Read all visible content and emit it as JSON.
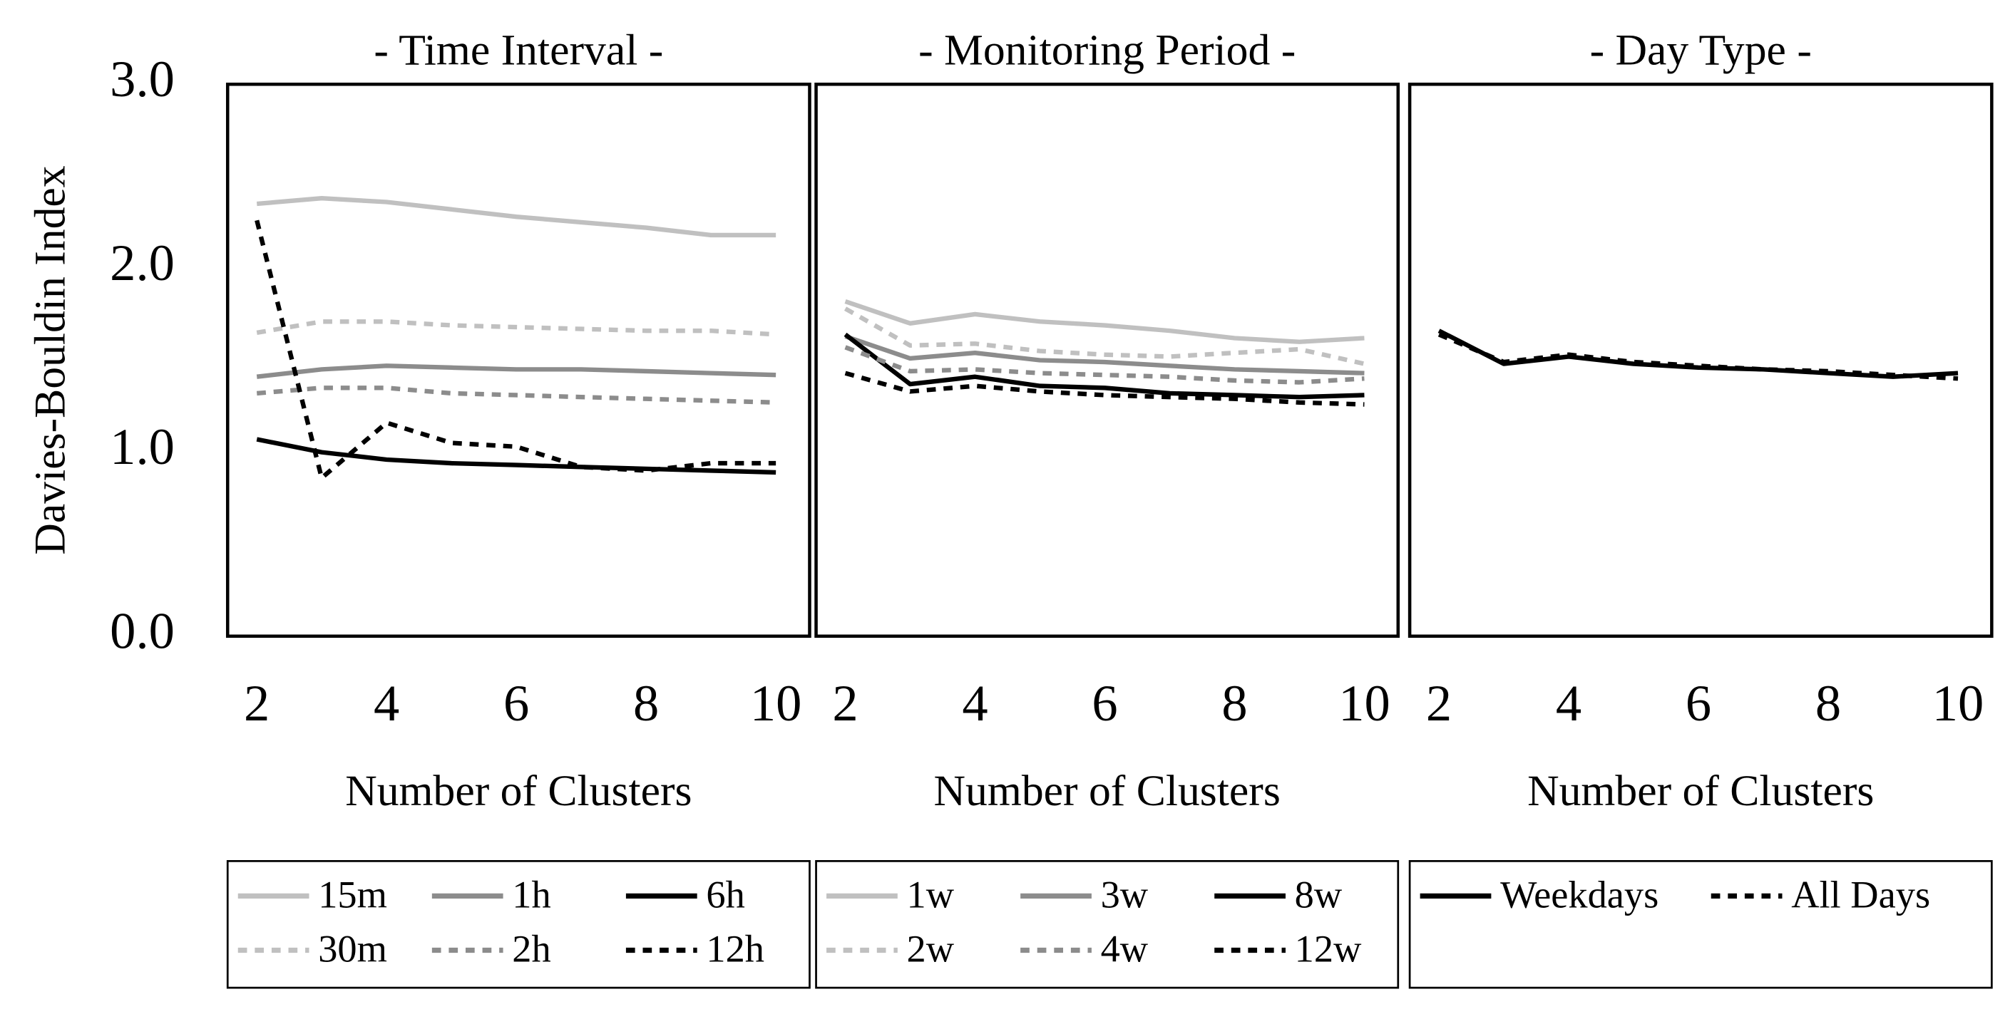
{
  "chart_data": [
    {
      "type": "line",
      "title": "- Time Interval -",
      "y_label": "Davies-Bouldin Index",
      "x_label": "Number of Clusters",
      "x": [
        2,
        3,
        4,
        5,
        6,
        7,
        8,
        9,
        10
      ],
      "xlim": [
        1.55,
        10.52
      ],
      "xticks": [
        2,
        4,
        6,
        8,
        10
      ],
      "ylim": [
        0,
        3
      ],
      "yticks": [
        {
          "value": 0,
          "label": "0.0"
        },
        {
          "value": 1,
          "label": "1.0"
        },
        {
          "value": 2,
          "label": "2.0"
        },
        {
          "value": 3,
          "label": "3.0"
        }
      ],
      "legend": "bottom",
      "series": [
        {
          "name": "15m",
          "color": "#c0c0c0",
          "dashed": false,
          "values": [
            2.35,
            2.38,
            2.36,
            2.32,
            2.28,
            2.25,
            2.22,
            2.18,
            2.18
          ]
        },
        {
          "name": "1h",
          "color": "#8c8c8c",
          "dashed": false,
          "values": [
            1.41,
            1.45,
            1.47,
            1.46,
            1.45,
            1.45,
            1.44,
            1.43,
            1.42
          ]
        },
        {
          "name": "6h",
          "color": "#000000",
          "dashed": false,
          "values": [
            1.07,
            1.0,
            0.96,
            0.94,
            0.93,
            0.92,
            0.91,
            0.9,
            0.89
          ]
        },
        {
          "name": "30m",
          "color": "#c0c0c0",
          "dashed": true,
          "values": [
            1.65,
            1.71,
            1.71,
            1.69,
            1.68,
            1.67,
            1.66,
            1.66,
            1.64
          ]
        },
        {
          "name": "2h",
          "color": "#8c8c8c",
          "dashed": true,
          "values": [
            1.32,
            1.35,
            1.35,
            1.32,
            1.31,
            1.3,
            1.29,
            1.28,
            1.27
          ]
        },
        {
          "name": "12h",
          "color": "#000000",
          "dashed": true,
          "values": [
            2.26,
            0.86,
            1.16,
            1.05,
            1.03,
            0.92,
            0.9,
            0.94,
            0.94
          ]
        }
      ]
    },
    {
      "type": "line",
      "title": "- Monitoring Period -",
      "x_label": "Number of Clusters",
      "x": [
        2,
        3,
        4,
        5,
        6,
        7,
        8,
        9,
        10
      ],
      "xlim": [
        1.55,
        10.52
      ],
      "xticks": [
        2,
        4,
        6,
        8,
        10
      ],
      "ylim": [
        0,
        3
      ],
      "legend": "bottom",
      "series": [
        {
          "name": "1w",
          "color": "#c0c0c0",
          "dashed": false,
          "values": [
            1.82,
            1.7,
            1.75,
            1.71,
            1.69,
            1.66,
            1.62,
            1.6,
            1.62
          ]
        },
        {
          "name": "3w",
          "color": "#8c8c8c",
          "dashed": false,
          "values": [
            1.63,
            1.51,
            1.54,
            1.5,
            1.49,
            1.47,
            1.45,
            1.44,
            1.43
          ]
        },
        {
          "name": "8w",
          "color": "#000000",
          "dashed": false,
          "values": [
            1.64,
            1.37,
            1.41,
            1.36,
            1.35,
            1.32,
            1.31,
            1.3,
            1.31
          ]
        },
        {
          "name": "2w",
          "color": "#c0c0c0",
          "dashed": true,
          "values": [
            1.78,
            1.58,
            1.59,
            1.55,
            1.53,
            1.52,
            1.54,
            1.56,
            1.48
          ]
        },
        {
          "name": "4w",
          "color": "#8c8c8c",
          "dashed": true,
          "values": [
            1.57,
            1.44,
            1.45,
            1.43,
            1.42,
            1.41,
            1.39,
            1.38,
            1.4
          ]
        },
        {
          "name": "12w",
          "color": "#000000",
          "dashed": true,
          "values": [
            1.43,
            1.33,
            1.36,
            1.33,
            1.31,
            1.3,
            1.29,
            1.27,
            1.26
          ]
        }
      ]
    },
    {
      "type": "line",
      "title": "- Day Type -",
      "x_label": "Number of Clusters",
      "x": [
        2,
        3,
        4,
        5,
        6,
        7,
        8,
        9,
        10
      ],
      "xlim": [
        1.55,
        10.52
      ],
      "xticks": [
        2,
        4,
        6,
        8,
        10
      ],
      "ylim": [
        0,
        3
      ],
      "legend": "bottom",
      "series": [
        {
          "name": "Weekdays",
          "color": "#000000",
          "dashed": false,
          "values": [
            1.66,
            1.48,
            1.52,
            1.48,
            1.46,
            1.45,
            1.43,
            1.41,
            1.43
          ]
        },
        {
          "name": "All Days",
          "color": "#000000",
          "dashed": true,
          "values": [
            1.64,
            1.49,
            1.53,
            1.49,
            1.47,
            1.45,
            1.44,
            1.42,
            1.4
          ]
        }
      ]
    }
  ]
}
